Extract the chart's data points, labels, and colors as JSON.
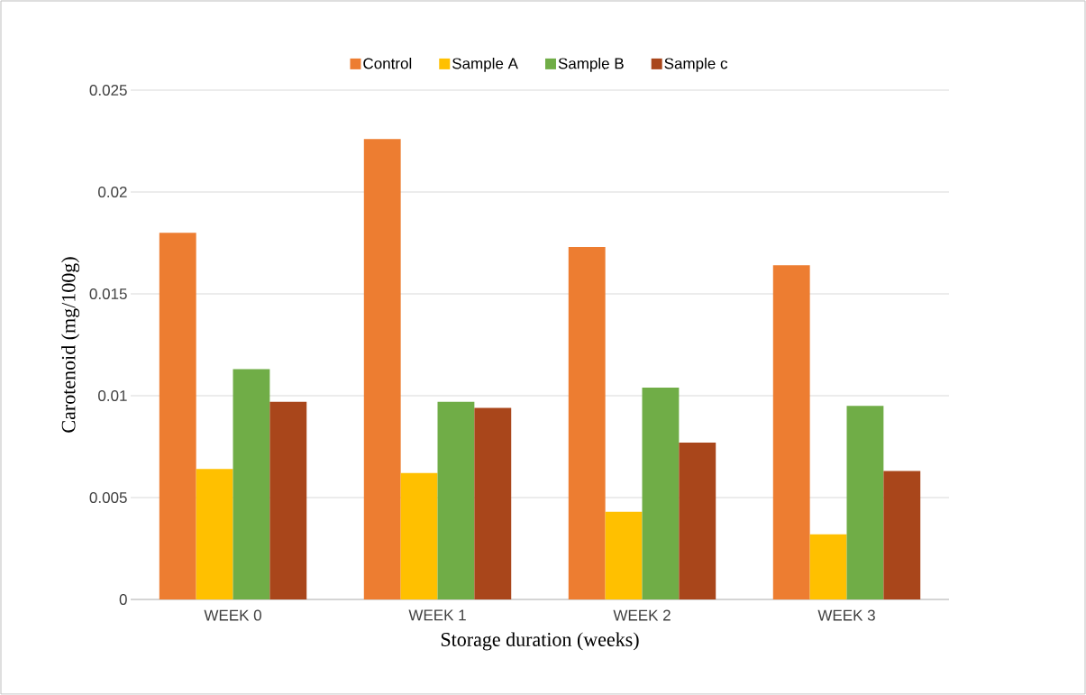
{
  "chart_data": {
    "type": "bar",
    "xlabel": "Storage duration (weeks)",
    "ylabel": "Carotenoid (mg/100g)",
    "categories": [
      "WEEK 0",
      "WEEK 1",
      "WEEK 2",
      "WEEK 3"
    ],
    "series": [
      {
        "name": "Control",
        "color": "#ed7d31",
        "values": [
          0.018,
          0.0226,
          0.0173,
          0.0164
        ]
      },
      {
        "name": "Sample A",
        "color": "#ffc000",
        "values": [
          0.0064,
          0.0062,
          0.0043,
          0.0032
        ]
      },
      {
        "name": "Sample B",
        "color": "#70ad47",
        "values": [
          0.0113,
          0.0097,
          0.0104,
          0.0095
        ]
      },
      {
        "name": "Sample c",
        "color": "#a9461b",
        "values": [
          0.0097,
          0.0094,
          0.0077,
          0.0063
        ]
      }
    ],
    "ylim": [
      0,
      0.025
    ],
    "yticks": [
      0,
      0.005,
      0.01,
      0.015,
      0.02,
      0.025
    ],
    "grid": "y",
    "legend": "top"
  }
}
